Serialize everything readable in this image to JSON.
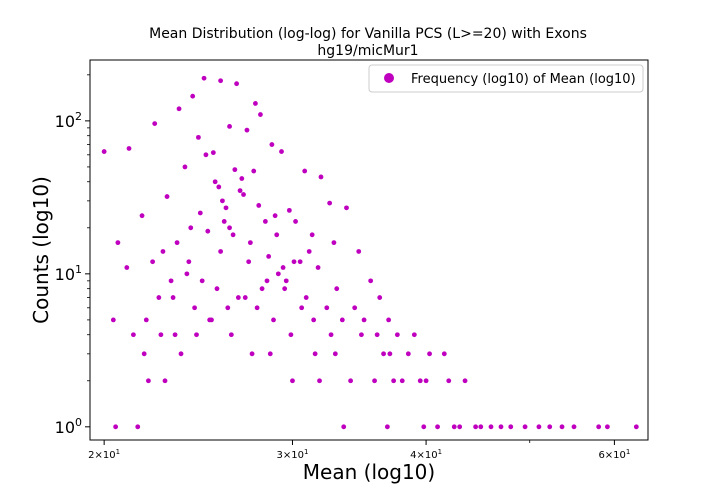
{
  "chart_data": {
    "type": "scatter",
    "title": "Mean Distribution (log-log) for Vanilla PCS (L>=20) with Exons",
    "subtitle": "hg19/micMur1",
    "xlabel": "Mean (log10)",
    "ylabel": "Counts (log10)",
    "x_scale": "log",
    "y_scale": "log",
    "xlim": [
      19.4,
      64.5
    ],
    "ylim": [
      0.82,
      250
    ],
    "x_ticks": [
      {
        "value": 20,
        "base": "2×10",
        "exp": "1"
      },
      {
        "value": 30,
        "base": "3×10",
        "exp": "1"
      },
      {
        "value": 40,
        "base": "4×10",
        "exp": "1"
      },
      {
        "value": 60,
        "base": "6×10",
        "exp": "1"
      }
    ],
    "y_ticks": [
      {
        "value": 1,
        "base": "10",
        "exp": "0"
      },
      {
        "value": 10,
        "base": "10",
        "exp": "1"
      },
      {
        "value": 100,
        "base": "10",
        "exp": "2"
      }
    ],
    "grid": false,
    "legend_position": "top-right",
    "color": "#bf00bf",
    "series": [
      {
        "name": "Frequency (log10) of Mean (log10)",
        "points": [
          [
            20.0,
            63
          ],
          [
            21.1,
            66
          ],
          [
            22.3,
            96
          ],
          [
            23.5,
            120
          ],
          [
            24.2,
            145
          ],
          [
            24.8,
            190
          ],
          [
            25.7,
            183
          ],
          [
            26.6,
            175
          ],
          [
            27.7,
            130
          ],
          [
            29.3,
            63
          ],
          [
            23.8,
            50
          ],
          [
            24.5,
            78
          ],
          [
            25.3,
            62
          ],
          [
            26.2,
            92
          ],
          [
            27.2,
            87
          ],
          [
            28.0,
            110
          ],
          [
            28.7,
            70
          ],
          [
            31.9,
            43
          ],
          [
            30.8,
            47
          ],
          [
            33.7,
            27
          ],
          [
            32.5,
            29
          ],
          [
            22.9,
            32
          ],
          [
            21.7,
            24
          ],
          [
            20.6,
            16
          ],
          [
            21.0,
            11
          ],
          [
            24.9,
            60
          ],
          [
            26.5,
            48
          ],
          [
            27.6,
            47
          ],
          [
            25.6,
            37
          ],
          [
            29.8,
            26
          ],
          [
            30.2,
            22
          ],
          [
            31.3,
            18
          ],
          [
            32.8,
            16
          ],
          [
            34.6,
            14
          ],
          [
            35.5,
            9
          ],
          [
            36.2,
            7
          ],
          [
            36.9,
            5
          ],
          [
            37.6,
            4
          ],
          [
            39.0,
            4
          ],
          [
            40.3,
            3
          ],
          [
            41.6,
            3
          ],
          [
            43.5,
            2
          ],
          [
            20.4,
            5
          ],
          [
            21.3,
            4
          ],
          [
            21.8,
            3
          ],
          [
            22.5,
            7
          ],
          [
            23.1,
            9
          ],
          [
            24.0,
            12
          ],
          [
            25.0,
            19
          ],
          [
            26.0,
            27
          ],
          [
            27.0,
            33
          ],
          [
            28.3,
            22
          ],
          [
            29.0,
            18
          ],
          [
            30.5,
            12
          ],
          [
            31.7,
            11
          ],
          [
            33.0,
            8
          ],
          [
            34.3,
            6
          ],
          [
            35.0,
            5
          ],
          [
            36.0,
            4
          ],
          [
            37.0,
            3
          ],
          [
            38.5,
            3
          ],
          [
            40.0,
            2
          ],
          [
            42.0,
            2
          ],
          [
            44.5,
            1
          ],
          [
            47.0,
            1
          ],
          [
            49.5,
            1
          ],
          [
            51.0,
            1
          ],
          [
            52.2,
            1
          ],
          [
            53.6,
            1
          ],
          [
            55.0,
            1
          ],
          [
            58.0,
            1
          ],
          [
            59.1,
            1
          ],
          [
            62.9,
            1
          ],
          [
            20.5,
            1
          ],
          [
            21.5,
            1
          ],
          [
            22.0,
            2
          ],
          [
            22.8,
            2
          ],
          [
            23.6,
            3
          ],
          [
            24.4,
            4
          ],
          [
            25.2,
            5
          ],
          [
            26.1,
            6
          ],
          [
            27.1,
            7
          ],
          [
            28.1,
            8
          ],
          [
            29.1,
            10
          ],
          [
            30.1,
            12
          ],
          [
            31.1,
            14
          ],
          [
            24.6,
            25
          ],
          [
            25.8,
            30
          ],
          [
            26.8,
            35
          ],
          [
            27.9,
            28
          ],
          [
            28.9,
            24
          ],
          [
            25.4,
            40
          ],
          [
            26.9,
            42
          ],
          [
            24.1,
            20
          ],
          [
            23.4,
            16
          ],
          [
            22.7,
            14
          ],
          [
            22.2,
            12
          ],
          [
            29.6,
            9
          ],
          [
            30.9,
            7
          ],
          [
            32.3,
            6
          ],
          [
            33.4,
            5
          ],
          [
            34.8,
            4
          ],
          [
            36.5,
            3
          ],
          [
            38.0,
            2
          ],
          [
            39.5,
            2
          ],
          [
            41.0,
            1
          ],
          [
            43.0,
            1
          ],
          [
            45.0,
            1
          ],
          [
            46.0,
            1
          ],
          [
            48.0,
            1
          ],
          [
            25.9,
            22
          ],
          [
            26.4,
            18
          ],
          [
            27.4,
            16
          ],
          [
            28.5,
            13
          ],
          [
            29.4,
            11
          ],
          [
            23.9,
            10
          ],
          [
            24.7,
            9
          ],
          [
            25.5,
            8
          ],
          [
            26.7,
            7
          ],
          [
            27.8,
            6
          ],
          [
            28.8,
            5
          ],
          [
            29.9,
            4
          ],
          [
            31.5,
            3
          ],
          [
            32.9,
            3
          ],
          [
            34.0,
            2
          ],
          [
            35.8,
            2
          ],
          [
            37.3,
            2
          ],
          [
            39.8,
            1
          ],
          [
            42.5,
            1
          ],
          [
            23.2,
            7
          ],
          [
            24.3,
            6
          ],
          [
            25.1,
            5
          ],
          [
            26.3,
            4
          ],
          [
            27.5,
            3
          ],
          [
            28.6,
            3
          ],
          [
            30.0,
            2
          ],
          [
            31.8,
            2
          ],
          [
            33.5,
            1
          ],
          [
            36.8,
            1
          ],
          [
            21.9,
            5
          ],
          [
            22.6,
            4
          ],
          [
            23.3,
            4
          ],
          [
            25.7,
            14
          ],
          [
            26.2,
            20
          ],
          [
            27.3,
            12
          ],
          [
            28.4,
            9
          ],
          [
            29.5,
            8
          ],
          [
            30.6,
            6
          ],
          [
            31.4,
            5
          ],
          [
            32.6,
            4
          ]
        ]
      }
    ]
  }
}
